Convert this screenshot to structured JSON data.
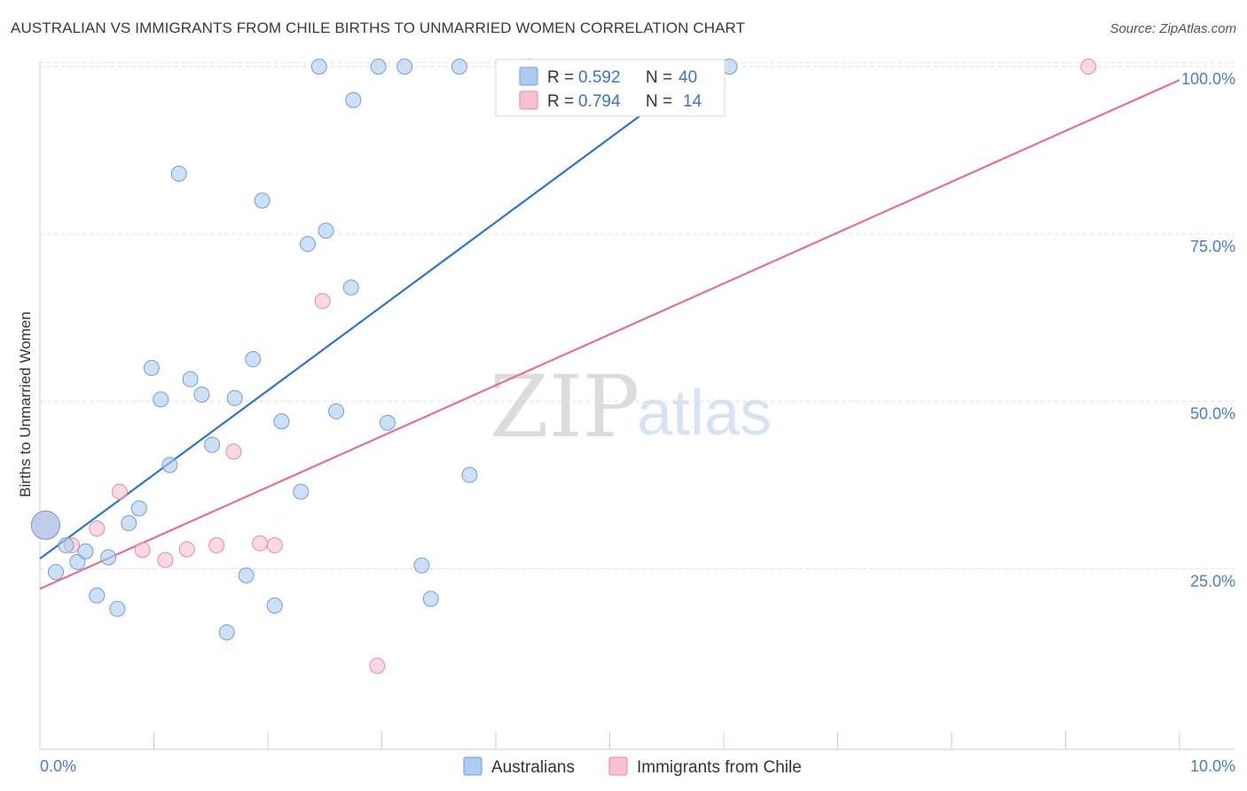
{
  "header": {
    "title": "AUSTRALIAN VS IMMIGRANTS FROM CHILE BIRTHS TO UNMARRIED WOMEN CORRELATION CHART",
    "source": "Source: ZipAtlas.com"
  },
  "watermark": {
    "zip": "ZIP",
    "atlas": "atlas"
  },
  "legend": {
    "rows": [
      {
        "r_label": "R = ",
        "r_value": "0.592",
        "n_label": "N = ",
        "n_value": "40",
        "color": "#aecbf0"
      },
      {
        "r_label": "R = ",
        "r_value": "0.794",
        "n_label": "N = ",
        "n_value": "14",
        "color": "#f7bfd0"
      }
    ]
  },
  "bottom_legend": [
    "Australians",
    "Immigrants from Chile"
  ],
  "chart_data": {
    "type": "scatter",
    "title": "AUSTRALIAN VS IMMIGRANTS FROM CHILE BIRTHS TO UNMARRIED WOMEN CORRELATION CHART",
    "xlabel": "",
    "ylabel": "Births to Unmarried Women",
    "xlim": [
      0,
      10
    ],
    "ylim": [
      2,
      102
    ],
    "x_tick_labels": [
      "0.0%",
      "10.0%"
    ],
    "y_ticks": [
      25,
      50,
      75,
      100
    ],
    "y_tick_labels": [
      "25.0%",
      "50.0%",
      "75.0%",
      "100.0%"
    ],
    "grid": true,
    "legend_position": "top-center",
    "series": [
      {
        "name": "Australians",
        "color": "#aecbf0",
        "stroke": "#6f9fd8",
        "line_color": "#2f74c9",
        "trend": [
          [
            0,
            26.5
          ],
          [
            5.85,
            100
          ]
        ],
        "points": [
          [
            0.05,
            31.5
          ],
          [
            0.14,
            24.5
          ],
          [
            0.23,
            28.5
          ],
          [
            0.33,
            26
          ],
          [
            0.4,
            27.6
          ],
          [
            0.5,
            21
          ],
          [
            0.6,
            26.7
          ],
          [
            0.68,
            19
          ],
          [
            0.78,
            31.8
          ],
          [
            0.87,
            34
          ],
          [
            0.98,
            55
          ],
          [
            1.06,
            50.3
          ],
          [
            1.14,
            40.5
          ],
          [
            1.22,
            84
          ],
          [
            1.32,
            53.3
          ],
          [
            1.42,
            51
          ],
          [
            1.51,
            43.5
          ],
          [
            1.64,
            15.5
          ],
          [
            1.71,
            50.5
          ],
          [
            1.81,
            24
          ],
          [
            1.87,
            56.3
          ],
          [
            1.95,
            80
          ],
          [
            2.06,
            19.5
          ],
          [
            2.12,
            47
          ],
          [
            2.29,
            36.5
          ],
          [
            2.35,
            73.5
          ],
          [
            2.45,
            100
          ],
          [
            2.51,
            75.5
          ],
          [
            2.6,
            48.5
          ],
          [
            2.73,
            67
          ],
          [
            2.75,
            95
          ],
          [
            2.97,
            100
          ],
          [
            3.05,
            46.8
          ],
          [
            3.2,
            100
          ],
          [
            3.35,
            25.5
          ],
          [
            3.43,
            20.5
          ],
          [
            3.68,
            100
          ],
          [
            3.77,
            39
          ],
          [
            4.3,
            100
          ],
          [
            6.05,
            100
          ]
        ]
      },
      {
        "name": "Immigrants from Chile",
        "color": "#f7bfd0",
        "stroke": "#e58aa7",
        "line_color": "#e07098",
        "trend": [
          [
            0,
            22
          ],
          [
            10,
            98
          ]
        ],
        "points": [
          [
            0.05,
            31.5
          ],
          [
            0.28,
            28.5
          ],
          [
            0.5,
            31
          ],
          [
            0.7,
            36.5
          ],
          [
            0.9,
            27.8
          ],
          [
            1.1,
            26.3
          ],
          [
            1.29,
            27.9
          ],
          [
            1.55,
            28.5
          ],
          [
            1.7,
            42.5
          ],
          [
            1.93,
            28.8
          ],
          [
            2.06,
            28.5
          ],
          [
            2.48,
            65
          ],
          [
            2.96,
            10.5
          ],
          [
            9.2,
            100
          ]
        ]
      }
    ]
  }
}
